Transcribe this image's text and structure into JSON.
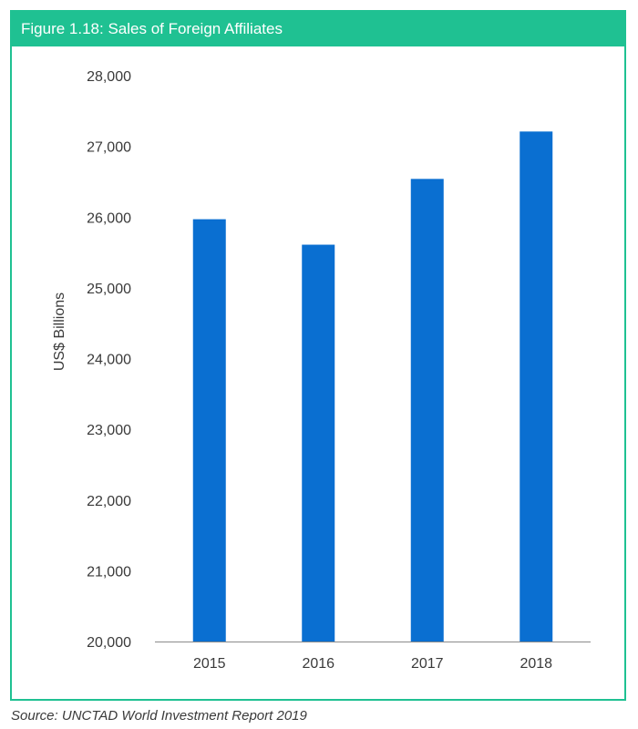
{
  "figure": {
    "title": "Figure 1.18: Sales of Foreign Affiliates",
    "source": "Source: UNCTAD World Investment Report 2019"
  },
  "colors": {
    "header_bg": "#1fc192",
    "border": "#1fc192",
    "bar": "#0a6fd1"
  },
  "chart_data": {
    "type": "bar",
    "title": "",
    "xlabel": "",
    "ylabel": "US$ Billions",
    "categories": [
      "2015",
      "2016",
      "2017",
      "2018"
    ],
    "values": [
      25970,
      25610,
      26540,
      27210
    ],
    "ylim": [
      20000,
      28000
    ],
    "yticks": [
      "20,000",
      "21,000",
      "22,000",
      "23,000",
      "24,000",
      "25,000",
      "26,000",
      "27,000",
      "28,000"
    ],
    "grid": false,
    "legend": "none"
  }
}
